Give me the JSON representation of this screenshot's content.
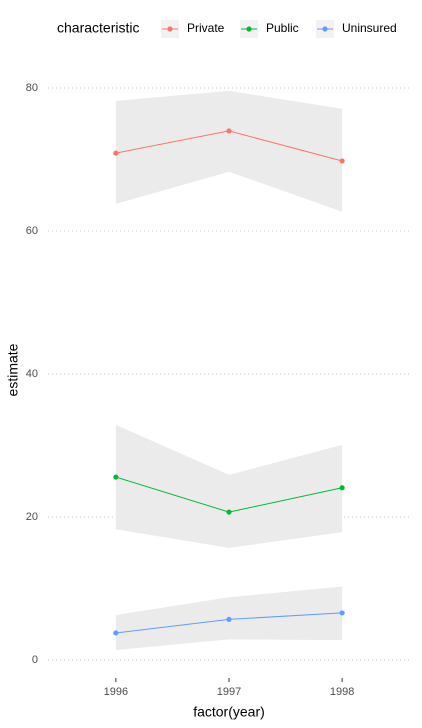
{
  "chart_data": {
    "type": "line",
    "categories": [
      "1996",
      "1997",
      "1998"
    ],
    "series": [
      {
        "name": "Private",
        "color": "#F8766D",
        "values": [
          70.9,
          74.0,
          69.8
        ],
        "lower": [
          63.8,
          68.3,
          62.7
        ],
        "upper": [
          78.2,
          79.6,
          77.1
        ]
      },
      {
        "name": "Public",
        "color": "#00BA38",
        "values": [
          25.6,
          20.7,
          24.1
        ],
        "lower": [
          18.3,
          15.7,
          17.9
        ],
        "upper": [
          32.9,
          25.9,
          30.1
        ]
      },
      {
        "name": "Uninsured",
        "color": "#619CFF",
        "values": [
          3.8,
          5.7,
          6.6
        ],
        "lower": [
          1.4,
          2.9,
          2.8
        ],
        "upper": [
          6.3,
          8.8,
          10.3
        ]
      }
    ],
    "ribbon_color": "#ebebeb",
    "xlabel": "factor(year)",
    "ylabel": "estimate",
    "legend_title": "characteristic",
    "legend": "top",
    "ylim": [
      -2.5,
      83.5
    ],
    "yticks": [
      0,
      20,
      40,
      60,
      80
    ],
    "grid": true
  }
}
